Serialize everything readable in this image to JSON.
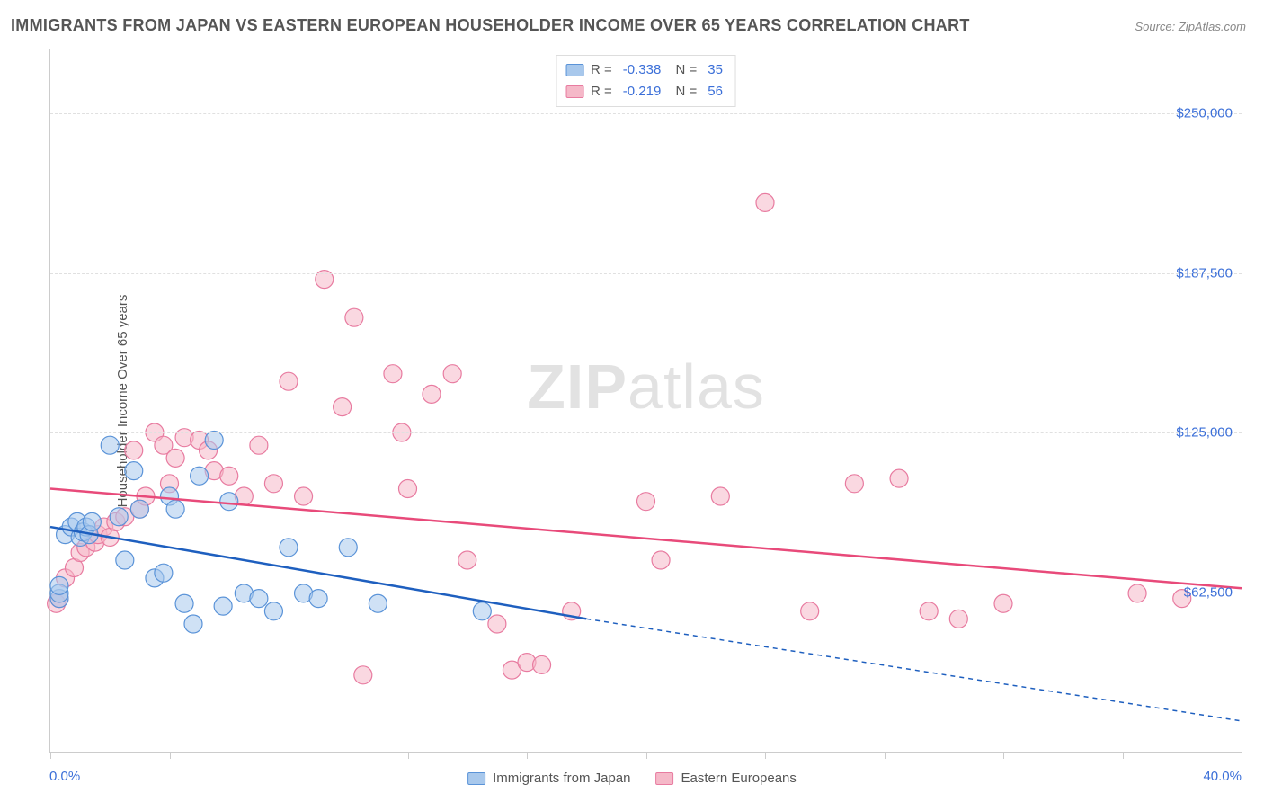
{
  "title": "IMMIGRANTS FROM JAPAN VS EASTERN EUROPEAN HOUSEHOLDER INCOME OVER 65 YEARS CORRELATION CHART",
  "source": "Source: ZipAtlas.com",
  "ylabel": "Householder Income Over 65 years",
  "watermark_a": "ZIP",
  "watermark_b": "atlas",
  "chart": {
    "type": "scatter",
    "xlim": [
      0,
      40
    ],
    "ylim": [
      0,
      275000
    ],
    "x_axis_label_left": "0.0%",
    "x_axis_label_right": "40.0%",
    "y_ticks": [
      62500,
      125000,
      187500,
      250000
    ],
    "y_tick_labels": [
      "$62,500",
      "$125,000",
      "$187,500",
      "$250,000"
    ],
    "x_tick_positions": [
      0,
      4,
      8,
      12,
      16,
      20,
      24,
      28,
      32,
      36,
      40
    ],
    "grid_color": "#e0e0e0",
    "background_color": "#ffffff",
    "axis_color": "#cccccc",
    "tick_label_color": "#3b6fd8",
    "marker_radius": 10,
    "marker_opacity": 0.55,
    "series": [
      {
        "name": "Immigrants from Japan",
        "color_fill": "#a8c8ec",
        "color_stroke": "#5a93d8",
        "R": "-0.338",
        "N": "35",
        "trend": {
          "x1": 0,
          "y1": 88000,
          "x2": 18,
          "y2": 52000,
          "extend_x2": 40,
          "extend_y2": 12000,
          "color": "#1e5fbf",
          "width": 2.5
        },
        "points": [
          [
            0.3,
            60000
          ],
          [
            0.3,
            62000
          ],
          [
            0.3,
            65000
          ],
          [
            0.5,
            85000
          ],
          [
            0.7,
            88000
          ],
          [
            0.9,
            90000
          ],
          [
            1.0,
            84000
          ],
          [
            1.1,
            86000
          ],
          [
            1.2,
            88000
          ],
          [
            1.3,
            85000
          ],
          [
            1.4,
            90000
          ],
          [
            2.0,
            120000
          ],
          [
            2.3,
            92000
          ],
          [
            2.5,
            75000
          ],
          [
            2.8,
            110000
          ],
          [
            3.0,
            95000
          ],
          [
            3.5,
            68000
          ],
          [
            3.8,
            70000
          ],
          [
            4.0,
            100000
          ],
          [
            4.2,
            95000
          ],
          [
            4.5,
            58000
          ],
          [
            4.8,
            50000
          ],
          [
            5.0,
            108000
          ],
          [
            5.5,
            122000
          ],
          [
            5.8,
            57000
          ],
          [
            6.0,
            98000
          ],
          [
            6.5,
            62000
          ],
          [
            7.0,
            60000
          ],
          [
            7.5,
            55000
          ],
          [
            8.0,
            80000
          ],
          [
            8.5,
            62000
          ],
          [
            9.0,
            60000
          ],
          [
            10.0,
            80000
          ],
          [
            11.0,
            58000
          ],
          [
            14.5,
            55000
          ]
        ]
      },
      {
        "name": "Eastern Europeans",
        "color_fill": "#f5b8c8",
        "color_stroke": "#e87ba0",
        "R": "-0.219",
        "N": "56",
        "trend": {
          "x1": 0,
          "y1": 103000,
          "x2": 40,
          "y2": 64000,
          "color": "#e84a7a",
          "width": 2.5
        },
        "points": [
          [
            0.2,
            58000
          ],
          [
            0.3,
            60000
          ],
          [
            0.5,
            68000
          ],
          [
            0.8,
            72000
          ],
          [
            1.0,
            78000
          ],
          [
            1.2,
            80000
          ],
          [
            1.5,
            82000
          ],
          [
            1.6,
            85000
          ],
          [
            1.8,
            88000
          ],
          [
            2.0,
            84000
          ],
          [
            2.2,
            90000
          ],
          [
            2.5,
            92000
          ],
          [
            2.8,
            118000
          ],
          [
            3.0,
            95000
          ],
          [
            3.2,
            100000
          ],
          [
            3.5,
            125000
          ],
          [
            3.8,
            120000
          ],
          [
            4.0,
            105000
          ],
          [
            4.2,
            115000
          ],
          [
            4.5,
            123000
          ],
          [
            5.0,
            122000
          ],
          [
            5.3,
            118000
          ],
          [
            5.5,
            110000
          ],
          [
            6.0,
            108000
          ],
          [
            6.5,
            100000
          ],
          [
            7.0,
            120000
          ],
          [
            7.5,
            105000
          ],
          [
            8.0,
            145000
          ],
          [
            8.5,
            100000
          ],
          [
            9.2,
            185000
          ],
          [
            9.8,
            135000
          ],
          [
            10.2,
            170000
          ],
          [
            10.5,
            30000
          ],
          [
            11.5,
            148000
          ],
          [
            11.8,
            125000
          ],
          [
            12.0,
            103000
          ],
          [
            12.8,
            140000
          ],
          [
            13.5,
            148000
          ],
          [
            14.0,
            75000
          ],
          [
            15.0,
            50000
          ],
          [
            15.5,
            32000
          ],
          [
            16.0,
            35000
          ],
          [
            16.5,
            34000
          ],
          [
            17.5,
            55000
          ],
          [
            20.0,
            98000
          ],
          [
            20.5,
            75000
          ],
          [
            22.5,
            100000
          ],
          [
            24.0,
            215000
          ],
          [
            25.5,
            55000
          ],
          [
            27.0,
            105000
          ],
          [
            28.5,
            107000
          ],
          [
            29.5,
            55000
          ],
          [
            30.5,
            52000
          ],
          [
            32.0,
            58000
          ],
          [
            36.5,
            62000
          ],
          [
            38.0,
            60000
          ]
        ]
      }
    ],
    "legend_bottom": [
      {
        "label": "Immigrants from Japan",
        "fill": "#a8c8ec",
        "stroke": "#5a93d8"
      },
      {
        "label": "Eastern Europeans",
        "fill": "#f5b8c8",
        "stroke": "#e87ba0"
      }
    ]
  }
}
